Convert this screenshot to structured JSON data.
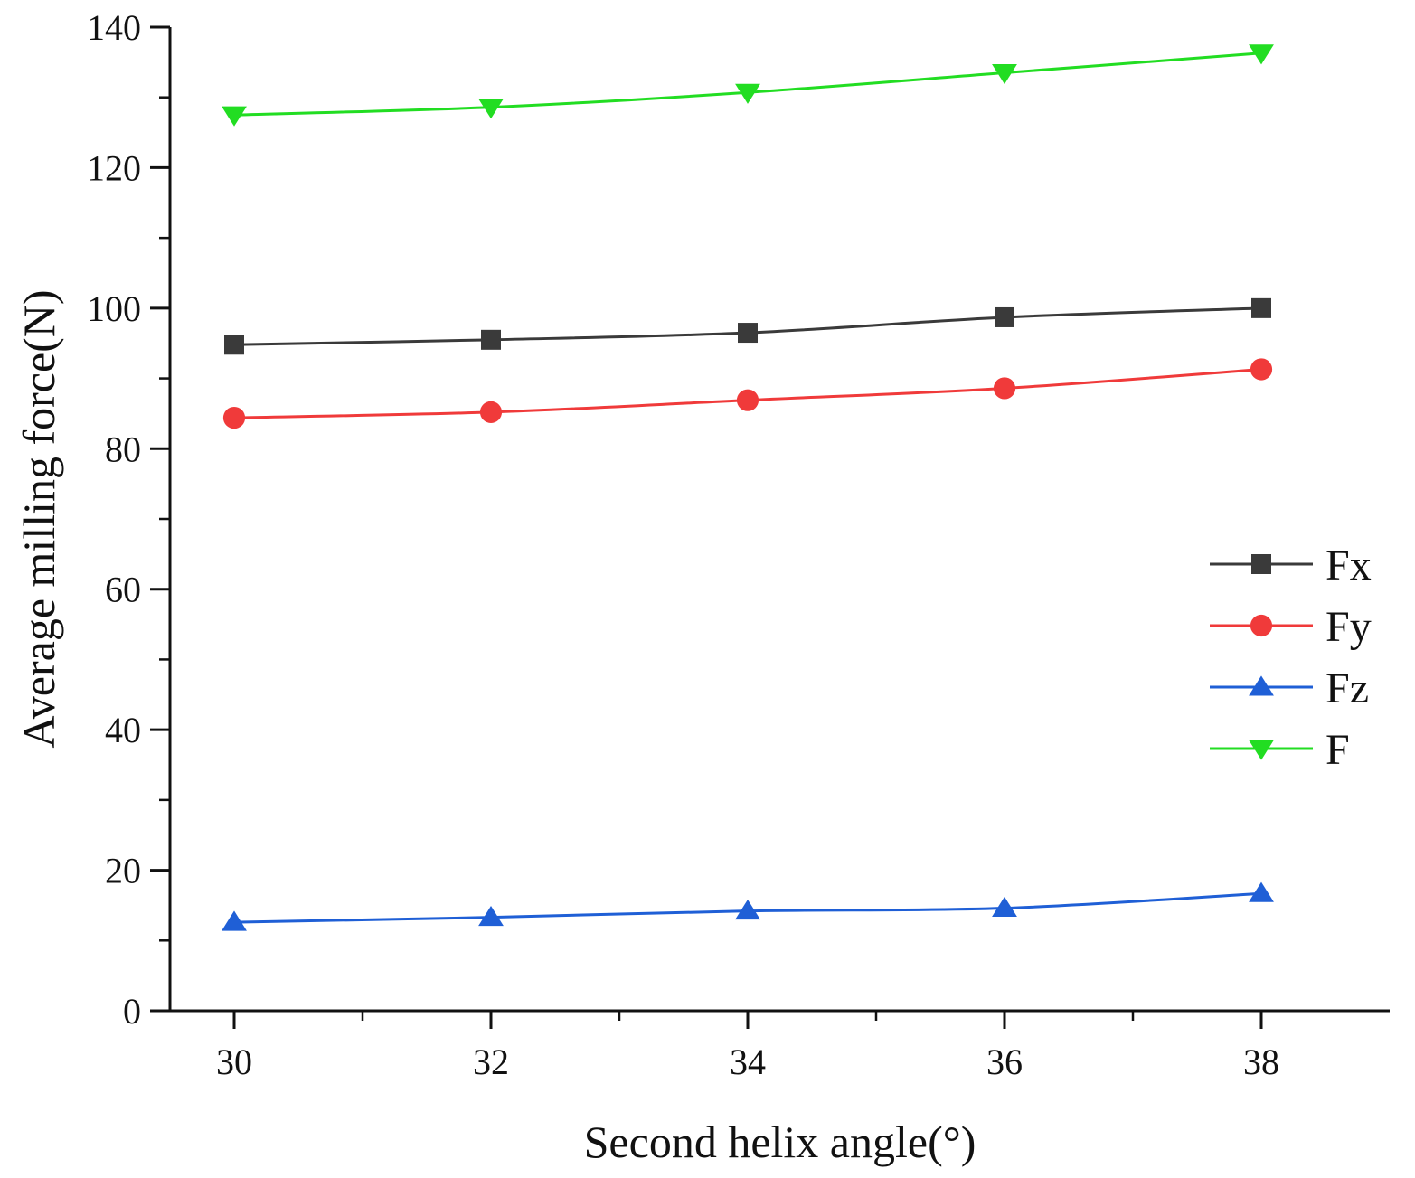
{
  "chart_data": {
    "type": "line",
    "title": "",
    "xlabel": "Second helix angle(°)",
    "ylabel": "Average milling force(N)",
    "x": [
      30,
      32,
      34,
      36,
      38
    ],
    "xlim": [
      29.5,
      39.0
    ],
    "ylim": [
      0,
      140
    ],
    "xticks": [
      30,
      32,
      34,
      36,
      38
    ],
    "yticks": [
      0,
      20,
      40,
      60,
      80,
      100,
      120,
      140
    ],
    "grid": false,
    "legend_position": "right",
    "series": [
      {
        "name": "Fx",
        "values": [
          94.8,
          95.5,
          96.5,
          98.7,
          100.0
        ],
        "color": "#3a3a3a",
        "marker": "square"
      },
      {
        "name": "Fy",
        "values": [
          84.4,
          85.2,
          86.9,
          88.6,
          91.3
        ],
        "color": "#f03a3a",
        "marker": "circle"
      },
      {
        "name": "Fz",
        "values": [
          12.6,
          13.3,
          14.2,
          14.6,
          16.7
        ],
        "color": "#1f5fd6",
        "marker": "triangle-up"
      },
      {
        "name": "F",
        "values": [
          127.5,
          128.6,
          130.7,
          133.5,
          136.3
        ],
        "color": "#22dd22",
        "marker": "triangle-down"
      }
    ]
  }
}
